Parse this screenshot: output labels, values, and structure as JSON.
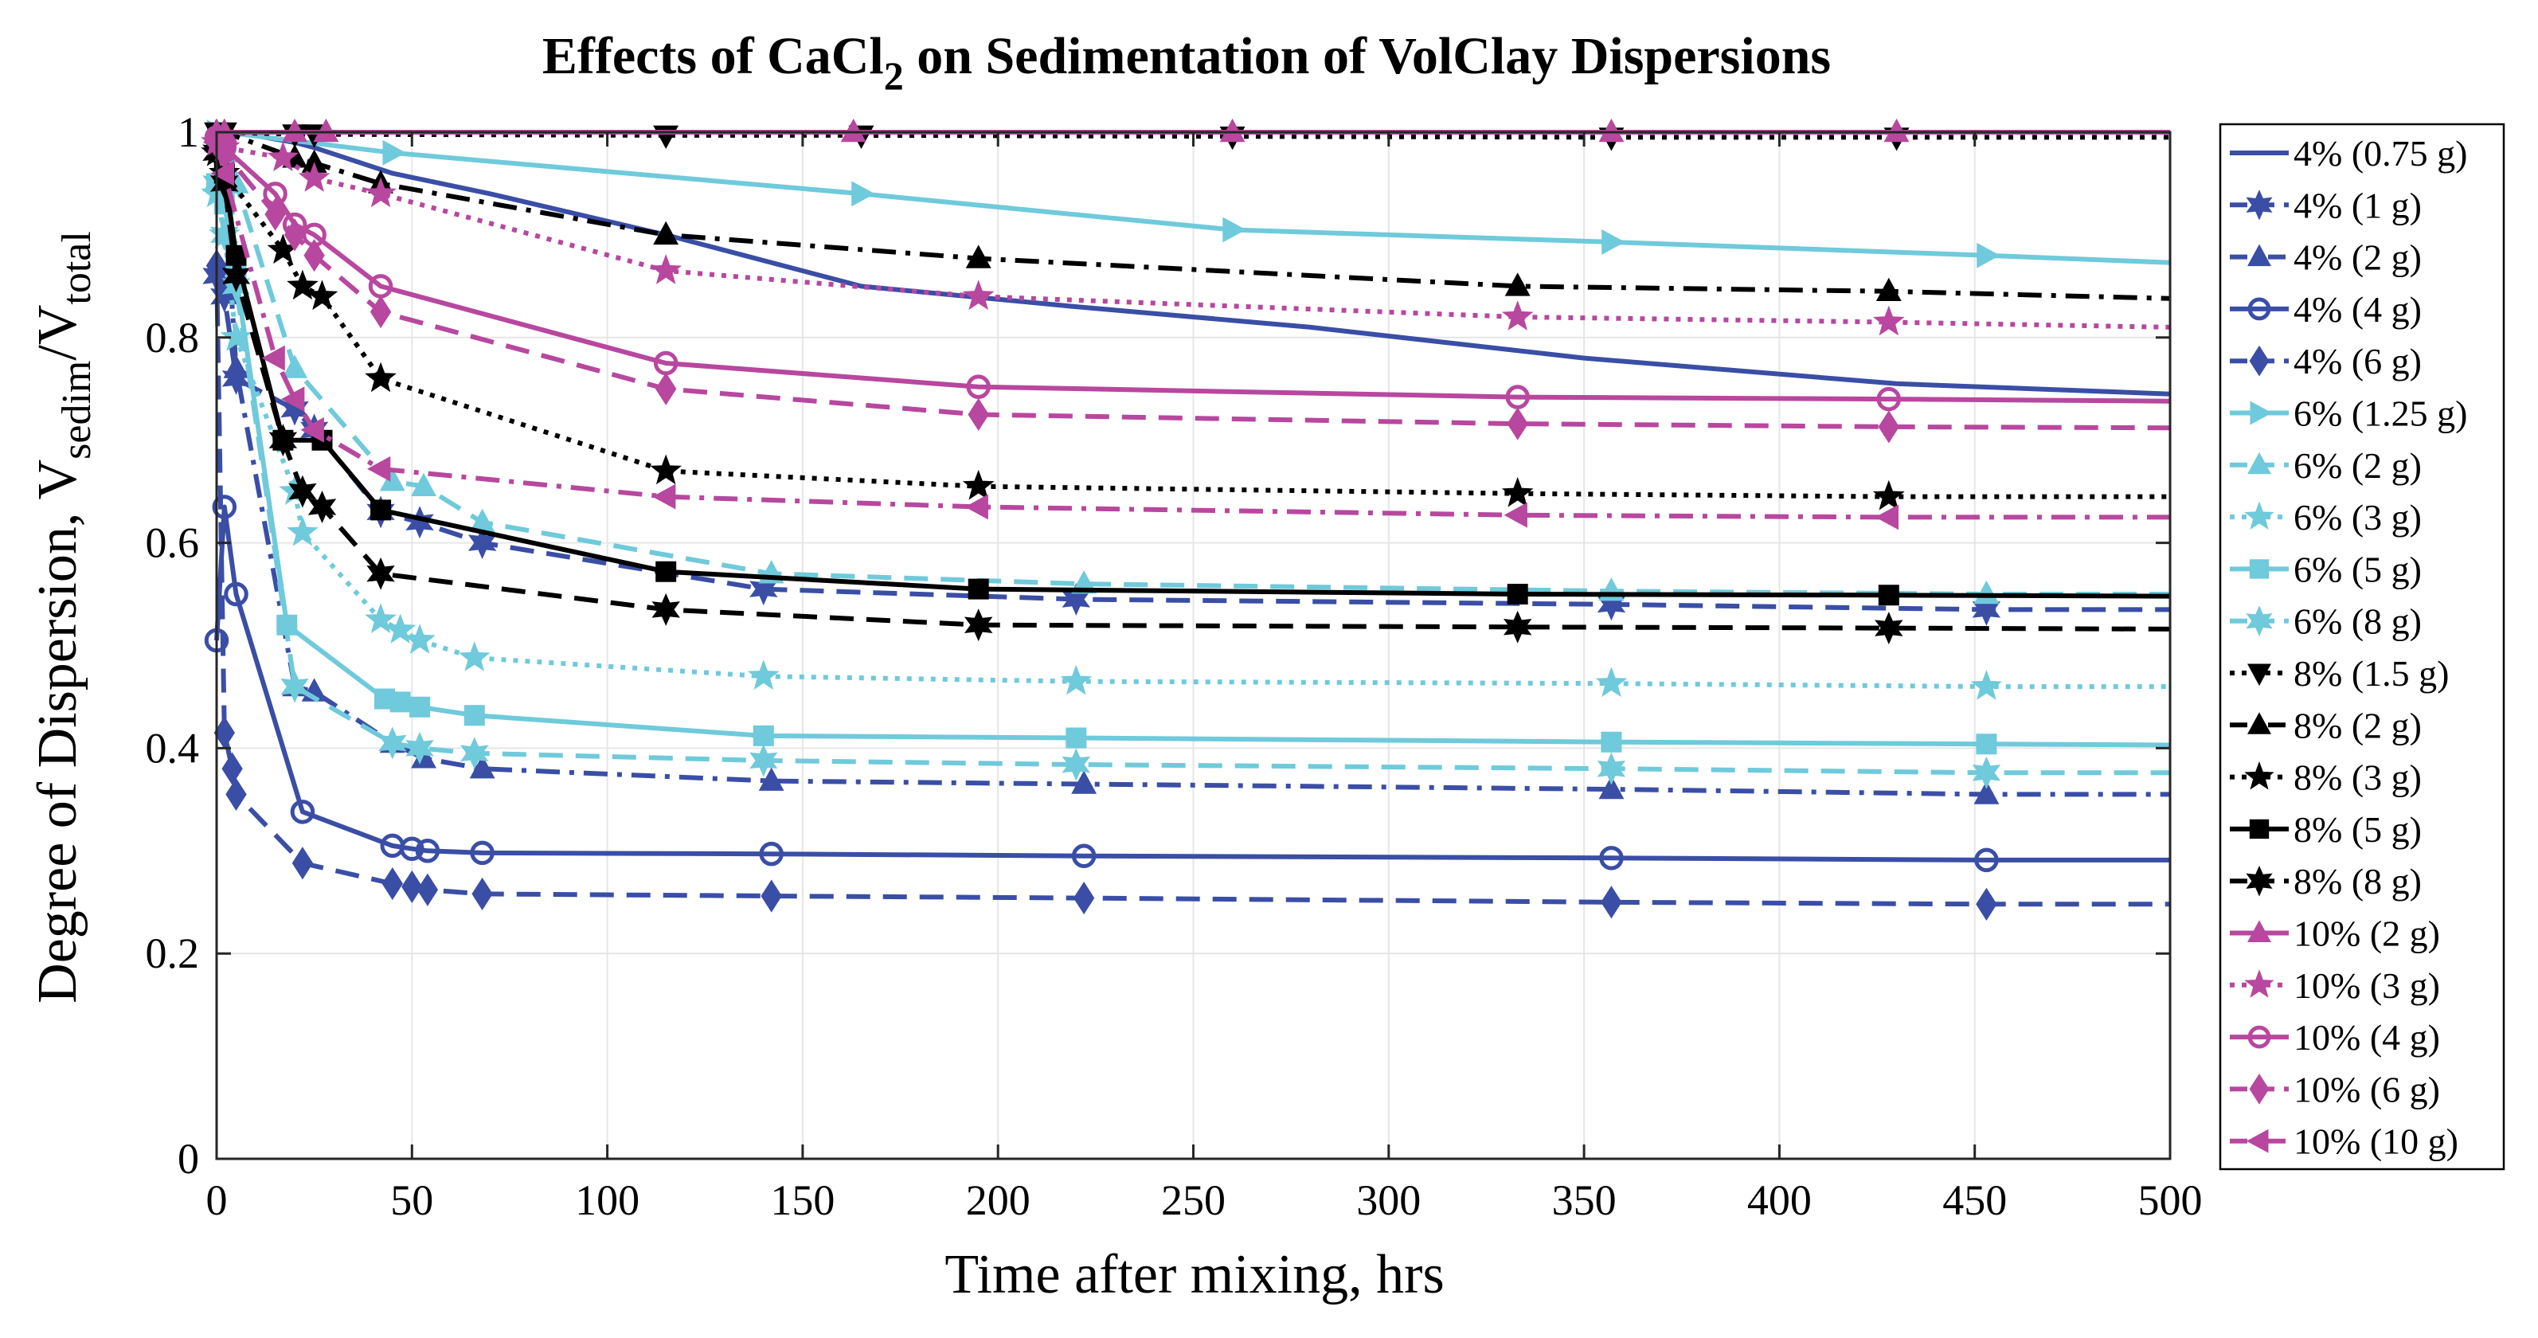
{
  "chart_data": {
    "type": "line",
    "title": "Effects of CaCl",
    "title_subscript": "2",
    "title_suffix": " on Sedimentation of VolClay Dispersions",
    "xlabel": "Time after mixing, hrs",
    "ylabel": {
      "prefix": "Degree of Dispersion, V",
      "sub1": "sedim",
      "mid": "/V",
      "sub2": "total"
    },
    "xlim": [
      0,
      500
    ],
    "ylim": [
      0,
      1
    ],
    "xticks": [
      0,
      50,
      100,
      150,
      200,
      250,
      300,
      350,
      400,
      450,
      500
    ],
    "yticks": [
      0,
      0.2,
      0.4,
      0.6,
      0.8,
      1
    ],
    "xtick_labels": [
      "0",
      "50",
      "100",
      "150",
      "200",
      "250",
      "300",
      "350",
      "400",
      "450",
      "500"
    ],
    "ytick_labels": [
      "0",
      "0.2",
      "0.4",
      "0.6",
      "0.8",
      "1"
    ],
    "grid": true,
    "legend_position": "right-outside",
    "colors": {
      "blue": "#3a4ea6",
      "cyan": "#6fcadb",
      "black": "#000000",
      "magenta": "#b8479f"
    },
    "series": [
      {
        "name": "4% (0.75 g)",
        "color": "#3a4ea6",
        "dash": "solid",
        "marker": "none",
        "x": [
          0,
          2,
          5,
          20,
          25,
          45,
          70,
          115,
          165,
          220,
          280,
          350,
          430,
          500
        ],
        "y": [
          1.0,
          1.0,
          1.0,
          0.99,
          0.985,
          0.96,
          0.94,
          0.9,
          0.85,
          0.83,
          0.81,
          0.78,
          0.755,
          0.745
        ]
      },
      {
        "name": "4% (1 g)",
        "color": "#3a4ea6",
        "dash": "dashed",
        "marker": "star6",
        "x": [
          0,
          2,
          5,
          20,
          25,
          42,
          52,
          68,
          140,
          220,
          357,
          453,
          500
        ],
        "y": [
          0.86,
          0.84,
          0.76,
          0.73,
          0.71,
          0.63,
          0.62,
          0.6,
          0.555,
          0.545,
          0.54,
          0.535,
          0.535
        ]
      },
      {
        "name": "4% (2 g)",
        "color": "#3a4ea6",
        "dash": "dashdot",
        "marker": "triangle-up",
        "x": [
          0,
          2,
          5,
          20,
          25,
          45,
          53,
          68,
          142,
          222,
          357,
          453,
          500
        ],
        "y": [
          0.99,
          0.95,
          0.77,
          0.46,
          0.455,
          0.405,
          0.39,
          0.38,
          0.368,
          0.365,
          0.36,
          0.355,
          0.355
        ]
      },
      {
        "name": "4% (4 g)",
        "color": "#3a4ea6",
        "dash": "solid",
        "marker": "circle",
        "x": [
          0,
          2,
          5,
          22,
          45,
          50,
          54,
          68,
          142,
          222,
          357,
          453,
          500
        ],
        "y": [
          0.505,
          0.635,
          0.55,
          0.338,
          0.305,
          0.302,
          0.3,
          0.298,
          0.297,
          0.295,
          0.293,
          0.291,
          0.291
        ]
      },
      {
        "name": "4% (6 g)",
        "color": "#3a4ea6",
        "dash": "dashed",
        "marker": "diamond",
        "x": [
          0,
          2,
          4,
          5,
          22,
          45,
          50,
          54,
          68,
          142,
          222,
          357,
          453,
          500
        ],
        "y": [
          0.87,
          0.415,
          0.38,
          0.355,
          0.288,
          0.268,
          0.265,
          0.262,
          0.258,
          0.256,
          0.254,
          0.25,
          0.248,
          0.248
        ]
      },
      {
        "name": "6% (1.25 g)",
        "color": "#6fcadb",
        "dash": "solid",
        "marker": "triangle-right",
        "x": [
          0,
          2,
          45,
          165,
          260,
          357,
          453,
          500
        ],
        "y": [
          1.0,
          1.0,
          0.98,
          0.94,
          0.905,
          0.893,
          0.88,
          0.873
        ]
      },
      {
        "name": "6% (2 g)",
        "color": "#6fcadb",
        "dash": "dashed",
        "marker": "triangle-up",
        "x": [
          0,
          2,
          5,
          20,
          45,
          53,
          68,
          142,
          222,
          357,
          453,
          500
        ],
        "y": [
          0.99,
          0.98,
          0.95,
          0.77,
          0.66,
          0.655,
          0.62,
          0.57,
          0.56,
          0.553,
          0.55,
          0.55
        ]
      },
      {
        "name": "6% (3 g)",
        "color": "#6fcadb",
        "dash": "dotted",
        "marker": "star5",
        "x": [
          0,
          2,
          5,
          20,
          22,
          42,
          47,
          52,
          66,
          140,
          220,
          357,
          453,
          500
        ],
        "y": [
          0.94,
          0.9,
          0.8,
          0.65,
          0.61,
          0.525,
          0.515,
          0.505,
          0.488,
          0.47,
          0.465,
          0.463,
          0.46,
          0.46
        ]
      },
      {
        "name": "6% (5 g)",
        "color": "#6fcadb",
        "dash": "solid",
        "marker": "square",
        "x": [
          0,
          2,
          5,
          18,
          43,
          47,
          52,
          66,
          140,
          220,
          357,
          453,
          500
        ],
        "y": [
          0.95,
          0.93,
          0.86,
          0.52,
          0.448,
          0.445,
          0.44,
          0.432,
          0.412,
          0.41,
          0.406,
          0.404,
          0.403
        ]
      },
      {
        "name": "6% (8 g)",
        "color": "#6fcadb",
        "dash": "dashed",
        "marker": "star6",
        "x": [
          0,
          2,
          5,
          20,
          45,
          52,
          66,
          140,
          220,
          357,
          453,
          500
        ],
        "y": [
          0.95,
          0.9,
          0.85,
          0.46,
          0.405,
          0.4,
          0.395,
          0.388,
          0.384,
          0.38,
          0.376,
          0.376
        ]
      },
      {
        "name": "8% (1.5 g)",
        "color": "#000000",
        "dash": "dotted",
        "marker": "triangle-down",
        "x": [
          0,
          2,
          20,
          25,
          115,
          165,
          260,
          357,
          430,
          500
        ],
        "y": [
          1.0,
          1.0,
          0.998,
          0.998,
          0.997,
          0.997,
          0.996,
          0.995,
          0.995,
          0.995
        ]
      },
      {
        "name": "8% (2 g)",
        "color": "#000000",
        "dash": "dashdot",
        "marker": "triangle-up",
        "x": [
          0,
          2,
          20,
          25,
          42,
          115,
          195,
          333,
          428,
          500
        ],
        "y": [
          1.0,
          1.0,
          0.975,
          0.97,
          0.95,
          0.9,
          0.877,
          0.85,
          0.845,
          0.838
        ]
      },
      {
        "name": "8% (3 g)",
        "color": "#000000",
        "dash": "dotted",
        "marker": "star5",
        "x": [
          0,
          2,
          17,
          22,
          27,
          42,
          115,
          195,
          333,
          428,
          500
        ],
        "y": [
          0.98,
          0.96,
          0.885,
          0.85,
          0.84,
          0.76,
          0.67,
          0.655,
          0.648,
          0.645,
          0.645
        ]
      },
      {
        "name": "8% (5 g)",
        "color": "#000000",
        "dash": "solid",
        "marker": "square",
        "x": [
          0,
          2,
          5,
          17,
          27,
          42,
          115,
          195,
          333,
          428,
          500
        ],
        "y": [
          0.99,
          0.96,
          0.88,
          0.7,
          0.7,
          0.632,
          0.572,
          0.555,
          0.55,
          0.549,
          0.548
        ]
      },
      {
        "name": "8% (8 g)",
        "color": "#000000",
        "dash": "dashed",
        "marker": "star6",
        "x": [
          0,
          2,
          5,
          17,
          22,
          27,
          42,
          115,
          195,
          333,
          428,
          500
        ],
        "y": [
          0.98,
          0.95,
          0.86,
          0.7,
          0.65,
          0.635,
          0.57,
          0.535,
          0.52,
          0.518,
          0.517,
          0.516
        ]
      },
      {
        "name": "10% (2 g)",
        "color": "#b8479f",
        "dash": "solid",
        "marker": "triangle-up",
        "x": [
          0,
          2,
          20,
          28,
          163,
          260,
          357,
          430,
          500
        ],
        "y": [
          1.0,
          1.0,
          1.0,
          1.0,
          1.0,
          1.0,
          1.0,
          1.0,
          1.0
        ]
      },
      {
        "name": "10% (3 g)",
        "color": "#b8479f",
        "dash": "dotted",
        "marker": "star5",
        "x": [
          0,
          2,
          17,
          25,
          42,
          115,
          195,
          333,
          428,
          500
        ],
        "y": [
          0.99,
          0.985,
          0.975,
          0.955,
          0.94,
          0.865,
          0.84,
          0.82,
          0.815,
          0.81
        ]
      },
      {
        "name": "10% (4 g)",
        "color": "#b8479f",
        "dash": "solid",
        "marker": "circle",
        "x": [
          0,
          2,
          15,
          20,
          25,
          42,
          115,
          195,
          333,
          428,
          500
        ],
        "y": [
          0.995,
          0.985,
          0.94,
          0.91,
          0.9,
          0.85,
          0.775,
          0.752,
          0.742,
          0.74,
          0.738
        ]
      },
      {
        "name": "10% (6 g)",
        "color": "#b8479f",
        "dash": "dashed",
        "marker": "diamond",
        "x": [
          0,
          2,
          15,
          20,
          25,
          42,
          115,
          195,
          333,
          428,
          500
        ],
        "y": [
          0.99,
          0.98,
          0.92,
          0.9,
          0.88,
          0.825,
          0.75,
          0.725,
          0.716,
          0.713,
          0.712
        ]
      },
      {
        "name": "10% (10 g)",
        "color": "#b8479f",
        "dash": "dashdot",
        "marker": "triangle-left",
        "x": [
          0,
          2,
          15,
          20,
          25,
          42,
          115,
          195,
          333,
          428,
          500
        ],
        "y": [
          0.99,
          0.96,
          0.78,
          0.74,
          0.71,
          0.672,
          0.645,
          0.635,
          0.627,
          0.625,
          0.625
        ]
      }
    ]
  }
}
